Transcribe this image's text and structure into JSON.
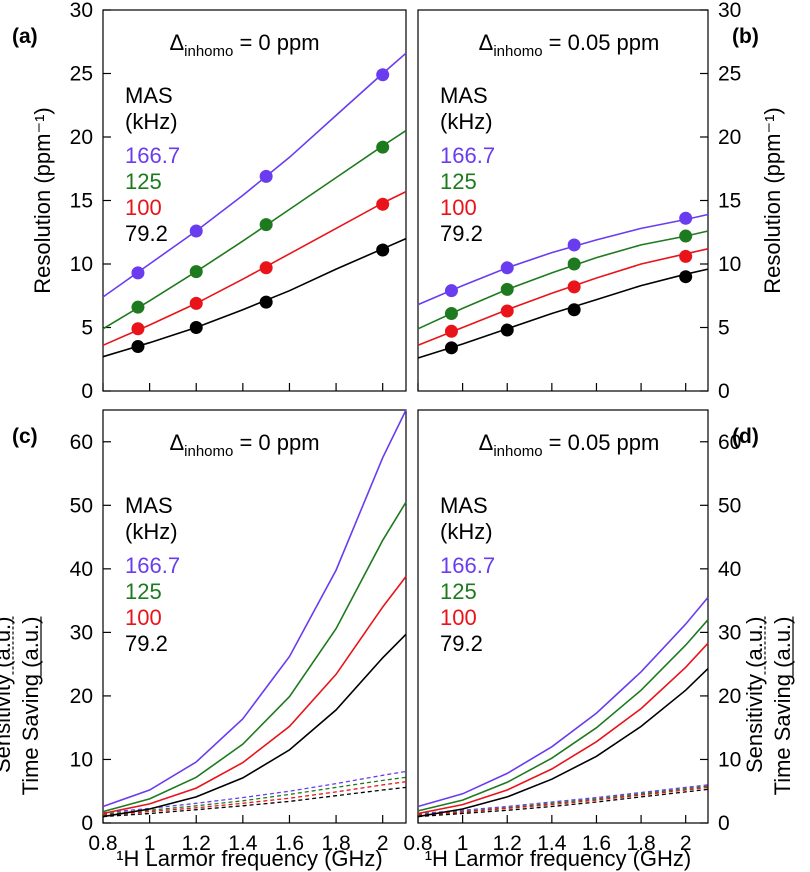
{
  "chart_data": [
    {
      "type": "scatter",
      "panel_label": "(a)",
      "title": {
        "delta": "Δ",
        "sub": "inhomo",
        "value": " = 0 ppm"
      },
      "legend": {
        "title1": "MAS",
        "title2": "(kHz)"
      },
      "xlabel": "¹H Larmor frequency (GHz)",
      "ylabel": "Resolution (ppm⁻¹)",
      "xlim": [
        0.8,
        2.1
      ],
      "ylim": [
        0,
        30
      ],
      "x_ticks": [
        "0.8",
        "1",
        "1.2",
        "1.4",
        "1.6",
        "1.8",
        "2"
      ],
      "y_ticks": [
        "0",
        "5",
        "10",
        "15",
        "20",
        "25",
        "30"
      ],
      "series": [
        {
          "name": "166.7",
          "color": "#6a3cf0",
          "points_x": [
            0.95,
            1.2,
            1.5,
            2.0
          ],
          "points_y": [
            9.3,
            12.6,
            16.9,
            24.9
          ],
          "curve_x": [
            0.8,
            1.0,
            1.2,
            1.4,
            1.6,
            1.8,
            2.0,
            2.1
          ],
          "curve_y": [
            7.4,
            10.0,
            12.6,
            15.4,
            18.4,
            21.7,
            25.0,
            26.6
          ]
        },
        {
          "name": "125",
          "color": "#1e7a1e",
          "points_x": [
            0.95,
            1.2,
            1.5,
            2.0
          ],
          "points_y": [
            6.6,
            9.4,
            13.1,
            19.2
          ],
          "curve_x": [
            0.8,
            1.0,
            1.2,
            1.4,
            1.6,
            1.8,
            2.0,
            2.1
          ],
          "curve_y": [
            4.9,
            7.1,
            9.4,
            11.8,
            14.3,
            16.8,
            19.3,
            20.5
          ]
        },
        {
          "name": "100",
          "color": "#e8141a",
          "points_x": [
            0.95,
            1.2,
            1.5,
            2.0
          ],
          "points_y": [
            4.9,
            6.9,
            9.7,
            14.7
          ],
          "curve_x": [
            0.8,
            1.0,
            1.2,
            1.4,
            1.6,
            1.8,
            2.0,
            2.1
          ],
          "curve_y": [
            3.6,
            5.2,
            6.9,
            8.8,
            10.8,
            12.8,
            14.8,
            15.7
          ]
        },
        {
          "name": "79.2",
          "color": "#000000",
          "points_x": [
            0.95,
            1.2,
            1.5,
            2.0
          ],
          "points_y": [
            3.5,
            5.0,
            7.0,
            11.1
          ],
          "curve_x": [
            0.8,
            1.0,
            1.2,
            1.4,
            1.6,
            1.8,
            2.0,
            2.1
          ],
          "curve_y": [
            2.7,
            3.8,
            5.0,
            6.4,
            7.9,
            9.6,
            11.2,
            12.0
          ]
        }
      ]
    },
    {
      "type": "scatter",
      "panel_label": "(b)",
      "title": {
        "delta": "Δ",
        "sub": "inhomo",
        "value": " = 0.05 ppm"
      },
      "legend": {
        "title1": "MAS",
        "title2": "(kHz)"
      },
      "xlabel": "¹H Larmor frequency (GHz)",
      "ylabel": "Resolution (ppm⁻¹)",
      "xlim": [
        0.8,
        2.1
      ],
      "ylim": [
        0,
        30
      ],
      "x_ticks": [
        "0.8",
        "1",
        "1.2",
        "1.4",
        "1.6",
        "1.8",
        "2"
      ],
      "y_ticks": [
        "0",
        "5",
        "10",
        "15",
        "20",
        "25",
        "30"
      ],
      "series": [
        {
          "name": "166.7",
          "color": "#6a3cf0",
          "points_x": [
            0.95,
            1.2,
            1.5,
            2.0
          ],
          "points_y": [
            7.9,
            9.7,
            11.5,
            13.6
          ],
          "curve_x": [
            0.8,
            1.0,
            1.2,
            1.4,
            1.6,
            1.8,
            2.0,
            2.1
          ],
          "curve_y": [
            6.8,
            8.3,
            9.7,
            10.9,
            11.9,
            12.8,
            13.5,
            13.9
          ]
        },
        {
          "name": "125",
          "color": "#1e7a1e",
          "points_x": [
            0.95,
            1.2,
            1.5,
            2.0
          ],
          "points_y": [
            6.1,
            8.0,
            10.0,
            12.2
          ],
          "curve_x": [
            0.8,
            1.0,
            1.2,
            1.4,
            1.6,
            1.8,
            2.0,
            2.1
          ],
          "curve_y": [
            4.9,
            6.5,
            8.0,
            9.3,
            10.5,
            11.5,
            12.2,
            12.6
          ]
        },
        {
          "name": "100",
          "color": "#e8141a",
          "points_x": [
            0.95,
            1.2,
            1.5,
            2.0
          ],
          "points_y": [
            4.7,
            6.3,
            8.2,
            10.6
          ],
          "curve_x": [
            0.8,
            1.0,
            1.2,
            1.4,
            1.6,
            1.8,
            2.0,
            2.1
          ],
          "curve_y": [
            3.6,
            5.0,
            6.4,
            7.7,
            8.9,
            10.0,
            10.8,
            11.2
          ]
        },
        {
          "name": "79.2",
          "color": "#000000",
          "points_x": [
            0.95,
            1.2,
            1.5,
            2.0
          ],
          "points_y": [
            3.4,
            4.8,
            6.4,
            9.0
          ],
          "curve_x": [
            0.8,
            1.0,
            1.2,
            1.4,
            1.6,
            1.8,
            2.0,
            2.1
          ],
          "curve_y": [
            2.6,
            3.7,
            4.9,
            6.1,
            7.2,
            8.3,
            9.2,
            9.6
          ]
        }
      ]
    },
    {
      "type": "line",
      "panel_label": "(c)",
      "title": {
        "delta": "Δ",
        "sub": "inhomo",
        "value": " = 0 ppm"
      },
      "legend": {
        "title1": "MAS",
        "title2": "(kHz)"
      },
      "xlabel": "¹H Larmor frequency (GHz)",
      "ylabel_dashed": "Sensitivity (a.u.)",
      "ylabel_solid": "Time Saving (a.u.)",
      "xlim": [
        0.8,
        2.1
      ],
      "ylim": [
        0,
        65
      ],
      "x_ticks": [
        "0.8",
        "1",
        "1.2",
        "1.4",
        "1.6",
        "1.8",
        "2"
      ],
      "y_ticks": [
        "0",
        "10",
        "20",
        "30",
        "40",
        "50",
        "60"
      ],
      "x": [
        0.8,
        1.0,
        1.2,
        1.4,
        1.6,
        1.8,
        2.0,
        2.1
      ],
      "series": [
        {
          "name": "166.7",
          "color": "#6a3cf0",
          "solid": [
            2.6,
            5.2,
            9.6,
            16.4,
            26.2,
            39.8,
            57.5,
            65.0
          ],
          "dashed": [
            1.6,
            2.3,
            3.1,
            4.0,
            5.0,
            6.2,
            7.5,
            8.1
          ]
        },
        {
          "name": "125",
          "color": "#1e7a1e",
          "solid": [
            1.8,
            3.8,
            7.2,
            12.4,
            19.9,
            30.6,
            44.5,
            50.5
          ],
          "dashed": [
            1.4,
            2.0,
            2.7,
            3.5,
            4.5,
            5.6,
            6.7,
            7.2
          ]
        },
        {
          "name": "100",
          "color": "#e8141a",
          "solid": [
            1.5,
            3.0,
            5.5,
            9.5,
            15.2,
            23.4,
            34.0,
            38.8
          ],
          "dashed": [
            1.2,
            1.8,
            2.4,
            3.1,
            3.9,
            4.9,
            6.0,
            6.5
          ]
        },
        {
          "name": "79.2",
          "color": "#000000",
          "solid": [
            1.0,
            2.2,
            4.1,
            7.1,
            11.5,
            17.8,
            26.0,
            29.7
          ],
          "dashed": [
            1.0,
            1.5,
            2.1,
            2.7,
            3.4,
            4.3,
            5.2,
            5.6
          ]
        }
      ]
    },
    {
      "type": "line",
      "panel_label": "(d)",
      "title": {
        "delta": "Δ",
        "sub": "inhomo",
        "value": " = 0.05 ppm"
      },
      "legend": {
        "title1": "MAS",
        "title2": "(kHz)"
      },
      "xlabel": "¹H Larmor frequency (GHz)",
      "ylabel_dashed": "Sensitivity (a.u.)",
      "ylabel_solid": "Time Saving (a.u.)",
      "xlim": [
        0.8,
        2.1
      ],
      "ylim": [
        0,
        65
      ],
      "x_ticks": [
        "0.8",
        "1",
        "1.2",
        "1.4",
        "1.6",
        "1.8",
        "2"
      ],
      "y_ticks": [
        "0",
        "10",
        "20",
        "30",
        "40",
        "50",
        "60"
      ],
      "x": [
        0.8,
        1.0,
        1.2,
        1.4,
        1.6,
        1.8,
        2.0,
        2.1
      ],
      "series": [
        {
          "name": "166.7",
          "color": "#6a3cf0",
          "solid": [
            2.6,
            4.6,
            7.8,
            12.0,
            17.3,
            23.8,
            31.3,
            35.5
          ],
          "dashed": [
            1.5,
            2.0,
            2.6,
            3.3,
            4.0,
            4.8,
            5.6,
            6.0
          ]
        },
        {
          "name": "125",
          "color": "#1e7a1e",
          "solid": [
            1.9,
            3.6,
            6.4,
            10.2,
            15.0,
            20.9,
            28.0,
            32.0
          ],
          "dashed": [
            1.3,
            1.8,
            2.4,
            3.1,
            3.8,
            4.6,
            5.4,
            5.8
          ]
        },
        {
          "name": "100",
          "color": "#e8141a",
          "solid": [
            1.5,
            2.9,
            5.2,
            8.5,
            12.8,
            18.0,
            24.5,
            28.3
          ],
          "dashed": [
            1.2,
            1.7,
            2.3,
            2.9,
            3.6,
            4.4,
            5.2,
            5.6
          ]
        },
        {
          "name": "79.2",
          "color": "#000000",
          "solid": [
            1.0,
            2.2,
            4.1,
            6.9,
            10.5,
            15.2,
            20.9,
            24.3
          ],
          "dashed": [
            1.0,
            1.5,
            2.0,
            2.6,
            3.3,
            4.1,
            4.9,
            5.3
          ]
        }
      ]
    }
  ]
}
